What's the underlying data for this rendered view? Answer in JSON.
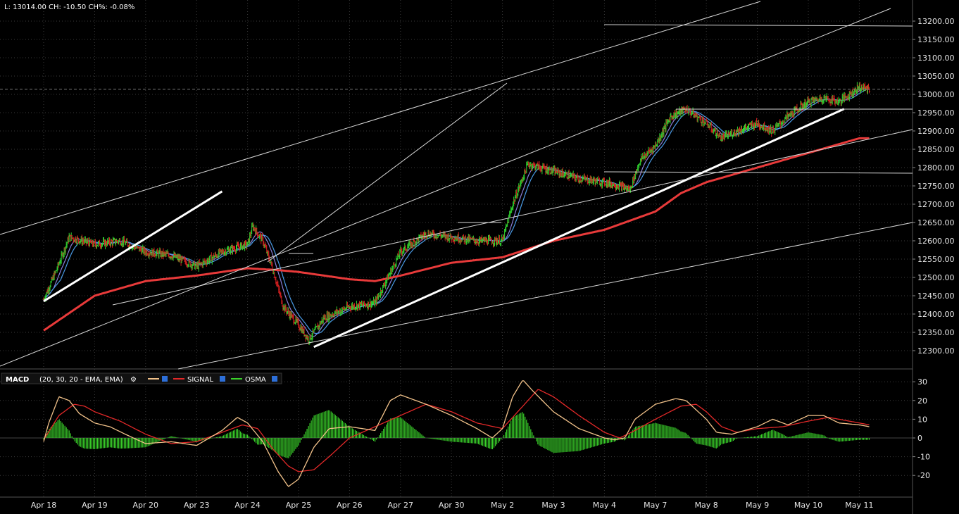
{
  "header": {
    "quote": "L: 13014.00 CH: -10.50 CH%: -0.08%"
  },
  "macd_legend": {
    "title": "MACD",
    "params": "(20, 30, 20 - EMA, EMA)",
    "signal_label": "SIGNAL",
    "osma_label": "OSMA"
  },
  "colors": {
    "background": "#000000",
    "grid": "#3a3a3a",
    "up_bar": "#2fd12f",
    "down_bar": "#d62020",
    "ma_fast": "#8a7fd8",
    "ma_slow": "#4a9be6",
    "ma_long": "#e83a3a",
    "trendline": "#ffffff",
    "macd_line": "#f2c28a",
    "signal_line": "#e22828",
    "osma_bar": "#3ad22a"
  },
  "chart_data": [
    {
      "type": "line",
      "name": "price",
      "ylim": [
        12250,
        13250
      ],
      "y_ticks": [
        13200,
        13150,
        13100,
        13050,
        13000,
        12950,
        12900,
        12850,
        12800,
        12750,
        12700,
        12650,
        12600,
        12550,
        12500,
        12450,
        12400,
        12350,
        12300
      ],
      "y_tick_labels": [
        "13200.00",
        "13150.00",
        "13100.00",
        "13050.00",
        "13000.00",
        "12950.00",
        "12900.00",
        "12850.00",
        "12800.00",
        "12750.00",
        "12700.00",
        "12650.00",
        "12600.00",
        "12550.00",
        "12500.00",
        "12450.00",
        "12400.00",
        "12350.00",
        "12300.00"
      ],
      "x_labels": [
        "Apr 18",
        "Apr 19",
        "Apr 20",
        "Apr 23",
        "Apr 24",
        "Apr 25",
        "Apr 26",
        "Apr 27",
        "Apr 30",
        "May 2",
        "May 3",
        "May 4",
        "May 7",
        "May 8",
        "May 9",
        "May 10",
        "May 11"
      ],
      "last_value": 13014,
      "close_anchors": [
        [
          0,
          12440
        ],
        [
          0.25,
          12520
        ],
        [
          0.5,
          12610
        ],
        [
          1.0,
          12590
        ],
        [
          1.5,
          12600
        ],
        [
          2.0,
          12570
        ],
        [
          2.5,
          12560
        ],
        [
          3.0,
          12530
        ],
        [
          3.5,
          12570
        ],
        [
          4.0,
          12590
        ],
        [
          4.1,
          12640
        ],
        [
          4.3,
          12600
        ],
        [
          4.5,
          12520
        ],
        [
          4.7,
          12420
        ],
        [
          5.0,
          12370
        ],
        [
          5.2,
          12330
        ],
        [
          5.5,
          12390
        ],
        [
          6.0,
          12420
        ],
        [
          6.5,
          12430
        ],
        [
          7.0,
          12570
        ],
        [
          7.5,
          12620
        ],
        [
          8.0,
          12610
        ],
        [
          8.5,
          12600
        ],
        [
          9.0,
          12600
        ],
        [
          9.2,
          12700
        ],
        [
          9.5,
          12810
        ],
        [
          10.0,
          12790
        ],
        [
          10.5,
          12770
        ],
        [
          11.0,
          12760
        ],
        [
          11.3,
          12750
        ],
        [
          11.5,
          12740
        ],
        [
          11.7,
          12820
        ],
        [
          12.0,
          12860
        ],
        [
          12.3,
          12940
        ],
        [
          12.6,
          12960
        ],
        [
          13.0,
          12920
        ],
        [
          13.3,
          12880
        ],
        [
          13.6,
          12900
        ],
        [
          14.0,
          12920
        ],
        [
          14.3,
          12900
        ],
        [
          14.6,
          12940
        ],
        [
          15.0,
          12980
        ],
        [
          15.3,
          12990
        ],
        [
          15.6,
          12980
        ],
        [
          16.0,
          13020
        ],
        [
          16.2,
          13014
        ]
      ],
      "ma_long_anchors": [
        [
          0,
          12355
        ],
        [
          1,
          12450
        ],
        [
          2,
          12490
        ],
        [
          3,
          12505
        ],
        [
          4,
          12525
        ],
        [
          4.6,
          12520
        ],
        [
          5,
          12515
        ],
        [
          6,
          12495
        ],
        [
          6.5,
          12490
        ],
        [
          7,
          12505
        ],
        [
          8,
          12540
        ],
        [
          9,
          12555
        ],
        [
          10,
          12600
        ],
        [
          11,
          12630
        ],
        [
          12,
          12680
        ],
        [
          12.5,
          12730
        ],
        [
          13,
          12760
        ],
        [
          14,
          12800
        ],
        [
          15,
          12840
        ],
        [
          16,
          12880
        ]
      ],
      "trendlines": [
        [
          [
            0,
            12435
          ],
          [
            3.5,
            12735
          ]
        ],
        [
          [
            5.3,
            12310
          ],
          [
            15.7,
            12960
          ]
        ]
      ]
    },
    {
      "type": "bar",
      "name": "MACD",
      "ylim": [
        -30,
        35
      ],
      "y_ticks": [
        30,
        20,
        10,
        0,
        -10,
        -20
      ],
      "y_tick_labels": [
        "30",
        "20",
        "10",
        "0",
        "-10",
        "-20"
      ],
      "macd_anchors": [
        [
          0,
          -2
        ],
        [
          0.1,
          8
        ],
        [
          0.3,
          22
        ],
        [
          0.5,
          20
        ],
        [
          0.7,
          13
        ],
        [
          1,
          8
        ],
        [
          1.3,
          6
        ],
        [
          1.6,
          2
        ],
        [
          2,
          -3
        ],
        [
          2.5,
          -2
        ],
        [
          3,
          -4
        ],
        [
          3.5,
          4
        ],
        [
          3.8,
          11
        ],
        [
          4,
          8
        ],
        [
          4.3,
          -2
        ],
        [
          4.6,
          -18
        ],
        [
          4.8,
          -26
        ],
        [
          5,
          -22
        ],
        [
          5.3,
          -5
        ],
        [
          5.6,
          5
        ],
        [
          6,
          6
        ],
        [
          6.5,
          4
        ],
        [
          6.8,
          20
        ],
        [
          7,
          23
        ],
        [
          7.5,
          18
        ],
        [
          8,
          12
        ],
        [
          8.5,
          5
        ],
        [
          8.8,
          0
        ],
        [
          9,
          5
        ],
        [
          9.2,
          22
        ],
        [
          9.4,
          31
        ],
        [
          9.6,
          25
        ],
        [
          10,
          14
        ],
        [
          10.5,
          5
        ],
        [
          11,
          0
        ],
        [
          11.2,
          -1
        ],
        [
          11.4,
          0
        ],
        [
          11.6,
          10
        ],
        [
          12,
          18
        ],
        [
          12.4,
          21
        ],
        [
          12.6,
          20
        ],
        [
          13,
          10
        ],
        [
          13.2,
          3
        ],
        [
          13.5,
          2
        ],
        [
          14,
          6
        ],
        [
          14.3,
          10
        ],
        [
          14.6,
          7
        ],
        [
          15,
          12
        ],
        [
          15.3,
          12
        ],
        [
          15.6,
          8
        ],
        [
          16,
          7
        ],
        [
          16.2,
          6
        ]
      ],
      "signal_anchors": [
        [
          0,
          -1
        ],
        [
          0.3,
          12
        ],
        [
          0.6,
          18
        ],
        [
          0.8,
          17
        ],
        [
          1,
          14
        ],
        [
          1.5,
          9
        ],
        [
          2,
          2
        ],
        [
          2.5,
          -3
        ],
        [
          3,
          -2
        ],
        [
          3.5,
          3
        ],
        [
          3.9,
          7
        ],
        [
          4.2,
          5
        ],
        [
          4.5,
          -6
        ],
        [
          4.8,
          -15
        ],
        [
          5,
          -18
        ],
        [
          5.3,
          -17
        ],
        [
          5.6,
          -10
        ],
        [
          6,
          0
        ],
        [
          6.5,
          6
        ],
        [
          7,
          12
        ],
        [
          7.5,
          18
        ],
        [
          8,
          14
        ],
        [
          8.5,
          8
        ],
        [
          9,
          5
        ],
        [
          9.3,
          14
        ],
        [
          9.7,
          26
        ],
        [
          10,
          22
        ],
        [
          10.5,
          12
        ],
        [
          11,
          3
        ],
        [
          11.3,
          0
        ],
        [
          11.6,
          4
        ],
        [
          12,
          10
        ],
        [
          12.5,
          17
        ],
        [
          12.8,
          18
        ],
        [
          13,
          14
        ],
        [
          13.3,
          6
        ],
        [
          13.6,
          3
        ],
        [
          14,
          5
        ],
        [
          14.5,
          6
        ],
        [
          15,
          9
        ],
        [
          15.4,
          11
        ],
        [
          15.8,
          9
        ],
        [
          16,
          8
        ],
        [
          16.2,
          7
        ]
      ]
    }
  ]
}
